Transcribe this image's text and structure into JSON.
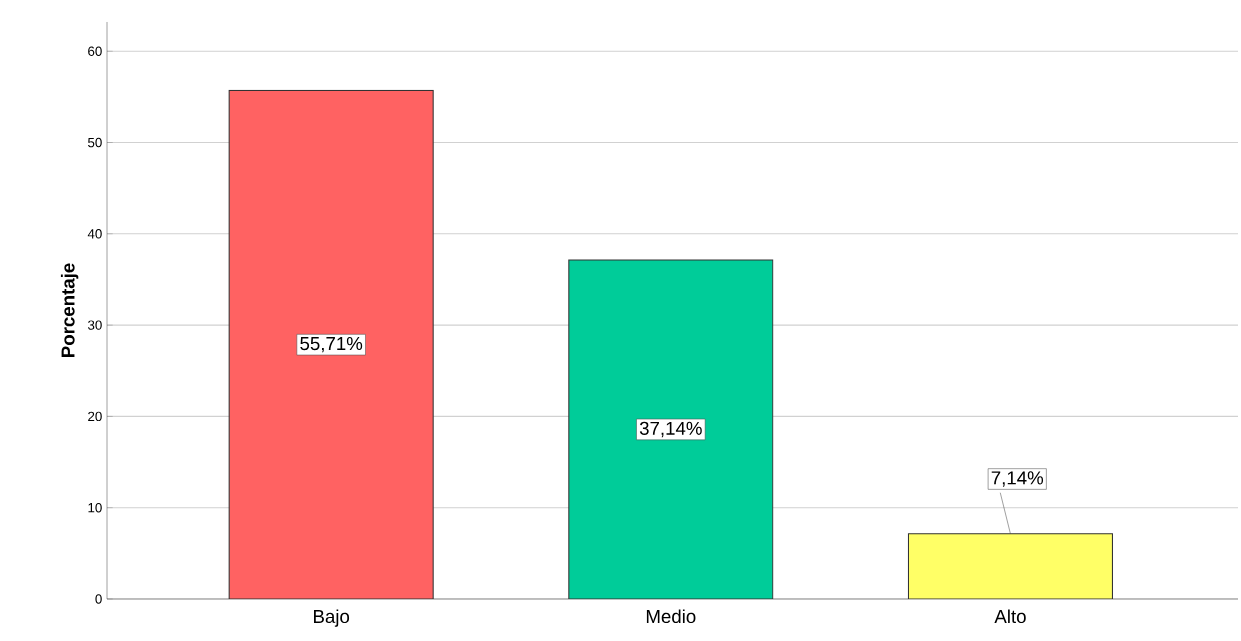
{
  "chart_data": {
    "type": "bar",
    "ylabel": "Porcentaje",
    "categories": [
      "Bajo",
      "Medio",
      "Alto"
    ],
    "values": [
      55.71,
      37.14,
      7.14
    ],
    "colors": [
      "#ff6262",
      "#00cc99",
      "#ffff66"
    ],
    "value_labels": [
      "55,71%",
      "37,14%",
      "7,14%"
    ],
    "ylim": [
      0,
      63.2
    ],
    "yticks": [
      0,
      10,
      20,
      30,
      40,
      50,
      60
    ],
    "grid": "y"
  }
}
